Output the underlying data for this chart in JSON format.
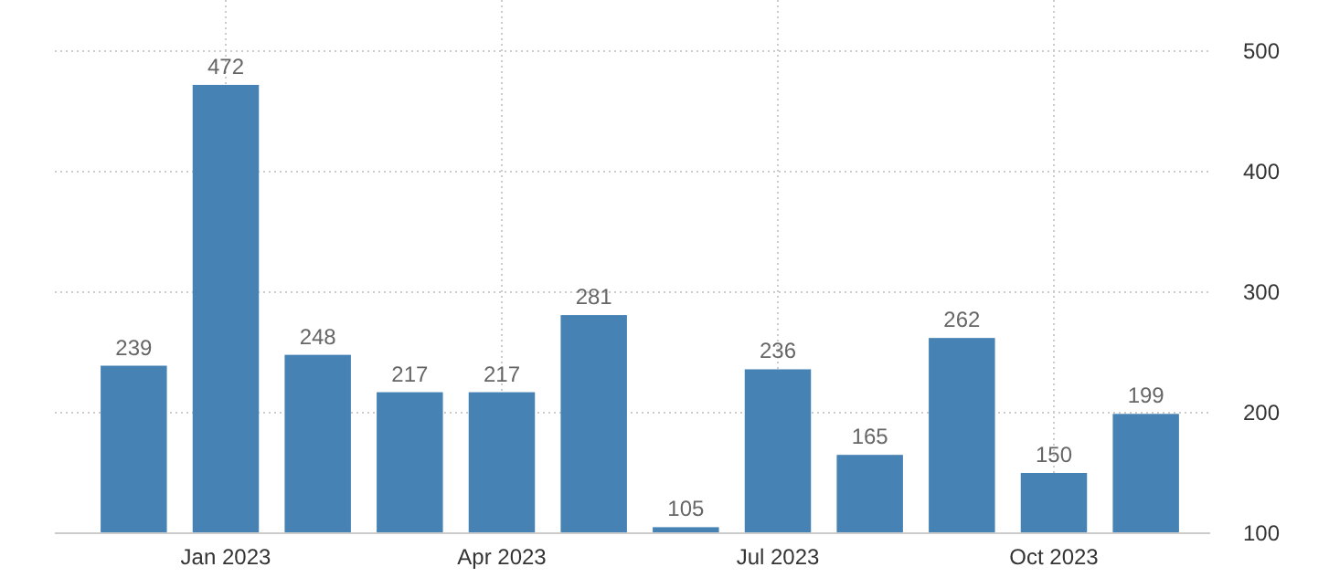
{
  "chart_data": {
    "type": "bar",
    "categories": [
      null,
      "Jan 2023",
      null,
      null,
      "Apr 2023",
      null,
      null,
      "Jul 2023",
      null,
      null,
      "Oct 2023",
      null
    ],
    "values": [
      239,
      472,
      248,
      217,
      217,
      281,
      105,
      236,
      165,
      262,
      150,
      199
    ],
    "color": "#4682b4",
    "ylim": [
      100,
      500
    ],
    "yticks": [
      100,
      200,
      300,
      400,
      500
    ],
    "grid": true,
    "data_labels": true
  }
}
